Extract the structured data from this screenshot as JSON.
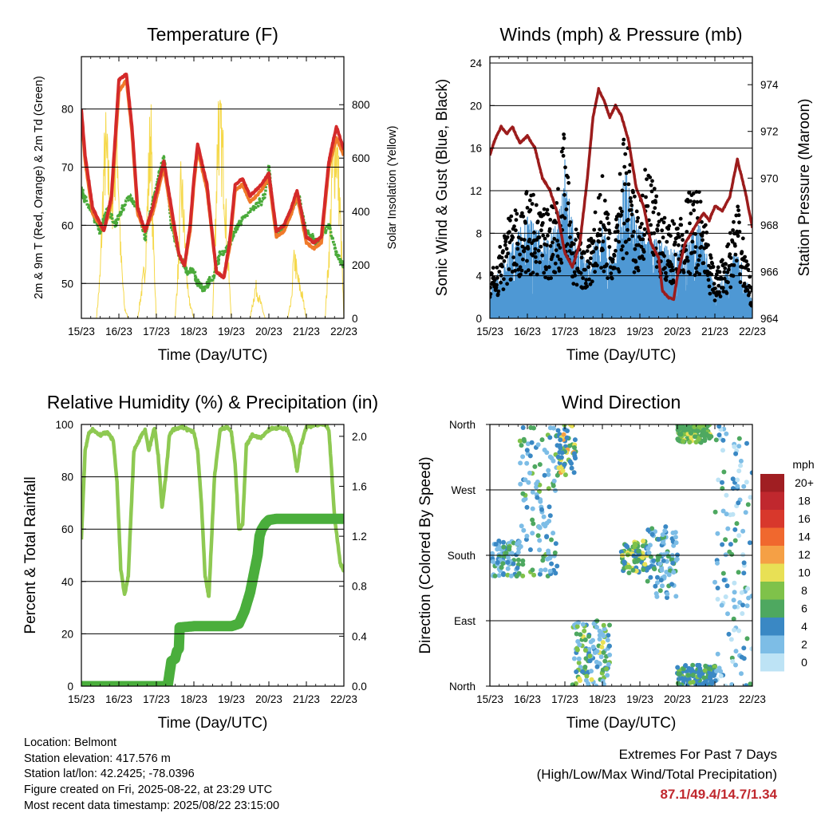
{
  "panels": {
    "temperature": {
      "title": "Temperature (F)",
      "xlabel": "Time (Day/UTC)",
      "ylabel_left": "2m & 9m T (Red, Orange) & 2m Td (Green)",
      "ylabel_right": "Solar Insolation (Yellow)"
    },
    "winds": {
      "title": "Winds (mph) & Pressure (mb)",
      "xlabel": "Time (Day/UTC)",
      "ylabel_left": "Sonic Wind & Gust (Blue, Black)",
      "ylabel_right": "Station Pressure (Maroon)"
    },
    "humidity": {
      "title": "Relative Humidity (%) & Precipitation (in)",
      "xlabel": "Time (Day/UTC)",
      "ylabel_left": "Percent & Total Rainfall"
    },
    "direction": {
      "title": "Wind Direction",
      "xlabel": "Time (Day/UTC)",
      "ylabel_left": "Direction (Colored By Speed)",
      "legend_title": "mph",
      "legend_labels": [
        "20+",
        "18",
        "16",
        "14",
        "12",
        "10",
        "8",
        "6",
        "4",
        "2",
        "0"
      ],
      "legend_colors": [
        "#a01e22",
        "#c0282e",
        "#d8382c",
        "#f0682e",
        "#f5a045",
        "#e8e055",
        "#7fc24a",
        "#4ea860",
        "#3a88c4",
        "#7dbde6",
        "#bde3f5"
      ]
    }
  },
  "info": {
    "location": "Location: Belmont",
    "elevation": "Station elevation: 417.576 m",
    "latlon": "Station lat/lon: 42.2425; -78.0396",
    "created": "Figure created on Fri, 2025-08-22, at 23:29 UTC",
    "recent": "Most recent data timestamp: 2025/08/22 23:15:00"
  },
  "extremes": {
    "line1": "Extremes For Past 7 Days",
    "line2": "(High/Low/Max Wind/Total Precipitation)",
    "values": "87.1/49.4/14.7/1.34"
  },
  "chart_data": [
    {
      "type": "line",
      "title": "Temperature (F)",
      "xlabel": "Time (Day/UTC)",
      "ylabel": "2m & 9m T (Red, Orange) & 2m Td (Green)",
      "y2label": "Solar Insolation (Yellow)",
      "x_ticks": [
        "15/23",
        "16/23",
        "17/23",
        "18/23",
        "19/23",
        "20/23",
        "21/23",
        "22/23"
      ],
      "xlim": [
        0,
        7
      ],
      "ylim": [
        44,
        89
      ],
      "y_ticks": [
        50,
        60,
        70,
        80
      ],
      "y2lim": [
        0,
        980
      ],
      "y2_ticks": [
        0,
        200,
        400,
        600,
        800
      ],
      "grid": "horizontal",
      "series": [
        {
          "name": "2m T",
          "color": "#d42a2a",
          "x": [
            0,
            0.1,
            0.3,
            0.6,
            0.8,
            1.0,
            1.2,
            1.35,
            1.5,
            1.7,
            1.9,
            2.2,
            2.45,
            2.6,
            2.75,
            2.9,
            3.0,
            3.1,
            3.35,
            3.6,
            3.8,
            3.95,
            4.1,
            4.3,
            4.5,
            4.8,
            5.0,
            5.2,
            5.4,
            5.6,
            5.75,
            5.85,
            6.0,
            6.2,
            6.4,
            6.6,
            6.8,
            7.0
          ],
          "y": [
            80,
            72,
            63,
            59,
            65,
            85,
            86,
            77,
            63,
            59,
            63,
            71,
            61,
            55,
            53,
            60,
            68,
            74,
            67,
            52,
            51,
            57,
            67,
            68,
            65,
            67,
            69,
            59,
            60,
            63,
            66,
            63,
            58,
            57,
            58,
            71,
            77,
            73
          ]
        },
        {
          "name": "9m T",
          "color": "#f07a2a",
          "x": [
            0,
            0.1,
            0.3,
            0.6,
            0.8,
            1.0,
            1.2,
            1.35,
            1.5,
            1.7,
            1.9,
            2.2,
            2.45,
            2.6,
            2.75,
            2.9,
            3.0,
            3.1,
            3.35,
            3.6,
            3.8,
            3.95,
            4.1,
            4.3,
            4.5,
            4.8,
            5.0,
            5.2,
            5.4,
            5.6,
            5.75,
            5.85,
            6.0,
            6.2,
            6.4,
            6.6,
            6.8,
            7.0
          ],
          "y": [
            79,
            71,
            62,
            59,
            64,
            83,
            85,
            76,
            62,
            59,
            62,
            70,
            60,
            55,
            53,
            59,
            67,
            73,
            66,
            52,
            51,
            56,
            66,
            67,
            64,
            66,
            68,
            58,
            59,
            62,
            65,
            62,
            57,
            56,
            57,
            70,
            75,
            72
          ]
        },
        {
          "name": "2m Td",
          "color": "#4aaa3a",
          "x": [
            0,
            0.3,
            0.5,
            0.7,
            0.9,
            1.1,
            1.3,
            1.5,
            1.7,
            1.9,
            2.05,
            2.2,
            2.4,
            2.6,
            2.8,
            3.0,
            3.1,
            3.3,
            3.5,
            3.7,
            3.9,
            4.1,
            4.3,
            4.6,
            4.9,
            5.0,
            5.2,
            5.5,
            5.8,
            6.0,
            6.3,
            6.6,
            6.8,
            7.0
          ],
          "y": [
            66,
            62,
            59,
            63,
            60,
            63,
            65,
            63,
            58,
            64,
            68,
            72,
            60,
            55,
            52,
            52,
            50,
            49,
            51,
            55,
            56,
            59,
            61,
            63,
            65,
            70,
            58,
            61,
            65,
            59,
            57,
            60,
            55,
            53
          ]
        },
        {
          "name": "Solar Insolation",
          "axis": "right",
          "color": "#f5d84a",
          "x": [
            0,
            0.4,
            0.5,
            0.6,
            0.65,
            0.8,
            0.95,
            1.05,
            1.15,
            1.25,
            1.35,
            1.5,
            1.7,
            1.8,
            1.85,
            1.9,
            2.0,
            2.5,
            2.6,
            2.65,
            2.7,
            2.75,
            2.85,
            3.0,
            3.5,
            3.6,
            3.65,
            3.7,
            3.75,
            3.8,
            3.9,
            4.0,
            4.5,
            4.6,
            4.65,
            4.7,
            4.8,
            4.9,
            5.0,
            5.5,
            5.6,
            5.65,
            5.7,
            5.75,
            5.9,
            6.0,
            6.5,
            6.6,
            6.7,
            6.8,
            6.9,
            7.0
          ],
          "y": [
            0,
            0,
            200,
            700,
            800,
            500,
            900,
            300,
            50,
            0,
            0,
            0,
            250,
            700,
            930,
            450,
            0,
            0,
            300,
            600,
            550,
            400,
            100,
            0,
            0,
            600,
            960,
            850,
            800,
            700,
            300,
            0,
            0,
            100,
            150,
            120,
            60,
            0,
            0,
            0,
            80,
            250,
            280,
            200,
            100,
            0,
            0,
            300,
            700,
            840,
            500,
            0
          ]
        }
      ]
    },
    {
      "type": "line",
      "title": "Winds (mph) & Pressure (mb)",
      "xlabel": "Time (Day/UTC)",
      "ylabel": "Sonic Wind & Gust (Blue, Black)",
      "y2label": "Station Pressure (Maroon)",
      "x_ticks": [
        "15/23",
        "16/23",
        "17/23",
        "18/23",
        "19/23",
        "20/23",
        "21/23",
        "22/23"
      ],
      "xlim": [
        0,
        7
      ],
      "ylim": [
        0,
        24.6
      ],
      "y_ticks": [
        0,
        4,
        8,
        12,
        16,
        20,
        24
      ],
      "y2lim": [
        964,
        975.2
      ],
      "y2_ticks": [
        964,
        966,
        968,
        970,
        972,
        974
      ],
      "grid": "horizontal",
      "series": [
        {
          "name": "Sonic Wind",
          "color": "#4e98d4",
          "x": [
            0,
            0.5,
            1.0,
            1.5,
            1.8,
            2.0,
            2.3,
            2.6,
            3.0,
            3.3,
            3.6,
            3.9,
            4.2,
            4.6,
            5.0,
            5.3,
            5.6,
            6.0,
            6.3,
            6.6,
            7.0
          ],
          "y": [
            1.5,
            3.5,
            5.5,
            4.5,
            5,
            9,
            4,
            3,
            5,
            3,
            8,
            5,
            4.5,
            4,
            3.5,
            4.5,
            5,
            1.5,
            2.5,
            4,
            1
          ]
        },
        {
          "name": "Gust",
          "color": "#000000",
          "x": [
            0,
            0.5,
            1.0,
            1.5,
            1.8,
            2.0,
            2.2,
            2.6,
            3.0,
            3.3,
            3.6,
            3.9,
            4.2,
            4.6,
            5.0,
            5.3,
            5.6,
            6.0,
            6.3,
            6.6,
            7.0
          ],
          "y": [
            3,
            7,
            9,
            8,
            8.5,
            14,
            7,
            5,
            10,
            5,
            14,
            8,
            11,
            7,
            7,
            9,
            9,
            3,
            5,
            8,
            2
          ]
        },
        {
          "name": "Station Pressure",
          "axis": "right",
          "color": "#9c1c1c",
          "x": [
            0,
            0.15,
            0.3,
            0.45,
            0.6,
            0.8,
            1.0,
            1.2,
            1.4,
            1.6,
            1.8,
            2.0,
            2.2,
            2.4,
            2.6,
            2.75,
            2.9,
            3.05,
            3.2,
            3.35,
            3.5,
            3.7,
            3.9,
            4.1,
            4.3,
            4.5,
            4.6,
            4.75,
            4.9,
            5.0,
            5.2,
            5.5,
            5.7,
            5.85,
            6.0,
            6.2,
            6.4,
            6.6,
            6.8,
            7.0
          ],
          "y": [
            971,
            971.7,
            972.2,
            971.9,
            972.2,
            971.5,
            971.8,
            971.3,
            970,
            969.5,
            968.5,
            966.8,
            966.2,
            967.2,
            970,
            972.6,
            973.8,
            973.3,
            972.6,
            973.1,
            972.7,
            971.6,
            969.6,
            968.8,
            967.2,
            966.6,
            965.2,
            964.9,
            964.8,
            965.8,
            967.2,
            968,
            968.5,
            968.2,
            968.8,
            968.6,
            969.2,
            970.8,
            969.5,
            967.9
          ]
        }
      ]
    },
    {
      "type": "line",
      "title": "Relative Humidity (%) & Precipitation (in)",
      "xlabel": "Time (Day/UTC)",
      "ylabel": "Percent & Total Rainfall",
      "x_ticks": [
        "15/23",
        "16/23",
        "17/23",
        "18/23",
        "19/23",
        "20/23",
        "21/23",
        "22/23"
      ],
      "xlim": [
        0,
        7
      ],
      "ylim": [
        0,
        100
      ],
      "y_ticks": [
        0,
        20,
        40,
        60,
        80,
        100
      ],
      "y2lim": [
        0,
        2.095
      ],
      "y2_ticks": [
        0.0,
        0.4,
        0.8,
        1.2,
        1.6,
        2.0
      ],
      "grid": "horizontal",
      "series": [
        {
          "name": "Relative Humidity",
          "color": "#8ec952",
          "x": [
            0,
            0.1,
            0.2,
            0.3,
            0.5,
            0.7,
            0.85,
            0.95,
            1.05,
            1.15,
            1.25,
            1.4,
            1.6,
            1.7,
            1.8,
            1.95,
            2.05,
            2.15,
            2.25,
            2.35,
            2.45,
            2.7,
            3.0,
            3.1,
            3.2,
            3.3,
            3.4,
            3.55,
            3.7,
            3.9,
            4.0,
            4.1,
            4.2,
            4.3,
            4.4,
            4.55,
            4.8,
            5.0,
            5.3,
            5.5,
            5.65,
            5.75,
            5.85,
            6.0,
            6.3,
            6.5,
            6.6,
            6.75,
            6.9,
            7.0
          ],
          "y": [
            56,
            90,
            97,
            98,
            96,
            97,
            94,
            78,
            45,
            35,
            42,
            90,
            96,
            98,
            90,
            99,
            88,
            68,
            80,
            96,
            98,
            99,
            97,
            90,
            70,
            42,
            34,
            80,
            98,
            99,
            97,
            85,
            60,
            62,
            92,
            96,
            95,
            98,
            99,
            98,
            92,
            82,
            92,
            99,
            100,
            100,
            98,
            65,
            47,
            44
          ]
        },
        {
          "name": "Total Precipitation",
          "axis": "right",
          "color": "#4aae3c",
          "x": [
            0,
            1.0,
            2.3,
            2.35,
            2.4,
            2.5,
            2.55,
            2.6,
            2.62,
            3.0,
            3.5,
            4.0,
            4.2,
            4.35,
            4.5,
            4.6,
            4.7,
            4.75,
            4.8,
            4.9,
            5.0,
            5.2,
            6.0,
            7.0
          ],
          "y": [
            0,
            0,
            0,
            0.1,
            0.2,
            0.22,
            0.28,
            0.3,
            0.47,
            0.48,
            0.48,
            0.48,
            0.5,
            0.6,
            0.75,
            0.9,
            1.05,
            1.2,
            1.25,
            1.3,
            1.33,
            1.34,
            1.34,
            1.34
          ]
        }
      ]
    },
    {
      "type": "scatter",
      "title": "Wind Direction",
      "xlabel": "Time (Day/UTC)",
      "ylabel": "Direction (Colored By Speed)",
      "x_ticks": [
        "15/23",
        "16/23",
        "17/23",
        "18/23",
        "19/23",
        "20/23",
        "21/23",
        "22/23"
      ],
      "xlim": [
        0,
        7
      ],
      "ylim": [
        0,
        360
      ],
      "y_ticks": [
        "North",
        "East",
        "South",
        "West",
        "North"
      ],
      "grid": "horizontal",
      "legend": "right",
      "clusters": [
        {
          "x": [
            0.05,
            0.8
          ],
          "dir": [
            150,
            200
          ],
          "speed_mph": [
            1,
            8
          ]
        },
        {
          "x": [
            0.8,
            1.8
          ],
          "dir": [
            150,
            360
          ],
          "speed_mph": [
            1,
            8
          ]
        },
        {
          "x": [
            1.8,
            2.3
          ],
          "dir": [
            290,
            360
          ],
          "speed_mph": [
            3,
            12
          ]
        },
        {
          "x": [
            2.2,
            3.2
          ],
          "dir": [
            0,
            90
          ],
          "speed_mph": [
            1,
            10
          ]
        },
        {
          "x": [
            3.5,
            4.2
          ],
          "dir": [
            155,
            200
          ],
          "speed_mph": [
            4,
            11
          ]
        },
        {
          "x": [
            4.2,
            5.0
          ],
          "dir": [
            120,
            220
          ],
          "speed_mph": [
            1,
            7
          ]
        },
        {
          "x": [
            5.0,
            5.9
          ],
          "dir": [
            335,
            360
          ],
          "speed_mph": [
            5,
            10
          ]
        },
        {
          "x": [
            5.0,
            6.0
          ],
          "dir": [
            0,
            30
          ],
          "speed_mph": [
            3,
            8
          ]
        },
        {
          "x": [
            6.0,
            7.0
          ],
          "dir": [
            0,
            360
          ],
          "speed_mph": [
            0,
            6
          ]
        }
      ]
    }
  ]
}
